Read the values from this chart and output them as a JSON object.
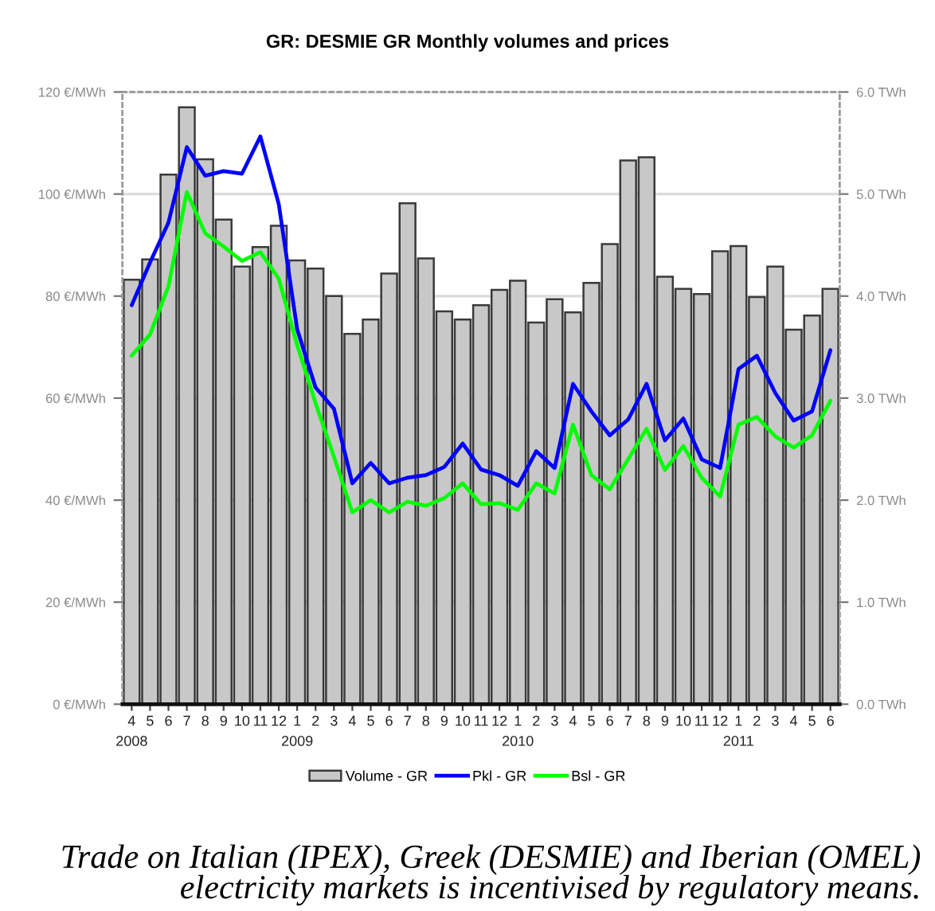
{
  "chart_data": {
    "type": "bar",
    "title": "GR: DESMIE GR Monthly volumes and prices",
    "categories": [
      "4\n2008",
      "5",
      "6",
      "7",
      "8",
      "9",
      "10",
      "11",
      "12",
      "1\n2009",
      "2",
      "3",
      "4",
      "5",
      "6",
      "7",
      "8",
      "9",
      "10",
      "11",
      "12",
      "1\n2010",
      "2",
      "3",
      "4",
      "5",
      "6",
      "7",
      "8",
      "9",
      "10",
      "11",
      "12",
      "1\n2011",
      "2",
      "3",
      "4",
      "5",
      "6"
    ],
    "series": [
      {
        "name": "Volume - GR",
        "axis": "y2",
        "color": "#c8c8c8",
        "values": [
          4.16,
          4.36,
          5.19,
          5.85,
          5.34,
          4.75,
          4.29,
          4.48,
          4.69,
          4.35,
          4.27,
          4.0,
          3.63,
          3.77,
          4.22,
          4.91,
          4.37,
          3.85,
          3.77,
          3.91,
          4.06,
          4.15,
          3.74,
          3.97,
          3.84,
          4.13,
          4.51,
          5.33,
          5.36,
          4.19,
          4.07,
          4.02,
          4.44,
          4.49,
          3.99,
          4.29,
          3.67,
          3.81,
          4.07
        ]
      },
      {
        "name": "Pkl - GR",
        "type": "line",
        "axis": "y",
        "color": "#0000ff",
        "values": [
          78.2,
          86.6,
          94.4,
          109.2,
          103.6,
          104.5,
          104.0,
          111.3,
          98.0,
          73.5,
          62.1,
          57.9,
          43.3,
          47.3,
          43.3,
          44.4,
          44.9,
          46.5,
          51.1,
          46.0,
          44.9,
          42.8,
          49.6,
          46.3,
          62.8,
          57.4,
          52.7,
          55.8,
          62.8,
          51.7,
          56.0,
          48.0,
          46.3,
          65.7,
          68.3,
          61.0,
          55.6,
          57.4,
          69.4
        ]
      },
      {
        "name": "Bsl - GR",
        "type": "line",
        "axis": "y",
        "color": "#00ff00",
        "values": [
          68.3,
          72.5,
          81.9,
          100.4,
          92.3,
          89.7,
          86.9,
          88.6,
          83.4,
          70.4,
          59.0,
          48.5,
          37.6,
          40.0,
          37.6,
          39.7,
          38.9,
          40.4,
          43.3,
          39.2,
          39.4,
          38.1,
          43.3,
          41.3,
          54.8,
          44.9,
          42.1,
          48.0,
          54.0,
          45.9,
          50.6,
          44.4,
          40.7,
          54.8,
          56.3,
          52.5,
          50.3,
          52.7,
          59.5
        ]
      }
    ],
    "ylim": [
      0,
      120
    ],
    "yticks": [
      {
        "value": 0,
        "label": "0 €/MWh"
      },
      {
        "value": 20,
        "label": "20 €/MWh"
      },
      {
        "value": 40,
        "label": "40 €/MWh"
      },
      {
        "value": 60,
        "label": "60 €/MWh"
      },
      {
        "value": 80,
        "label": "80 €/MWh"
      },
      {
        "value": 100,
        "label": "100 €/MWh"
      },
      {
        "value": 120,
        "label": "120 €/MWh"
      }
    ],
    "y2lim": [
      0,
      6
    ],
    "y2ticks": [
      {
        "value": 0,
        "label": "0.0 TWh"
      },
      {
        "value": 1,
        "label": "1.0 TWh"
      },
      {
        "value": 2,
        "label": "2.0 TWh"
      },
      {
        "value": 3,
        "label": "3.0 TWh"
      },
      {
        "value": 4,
        "label": "4.0 TWh"
      },
      {
        "value": 5,
        "label": "5.0 TWh"
      },
      {
        "value": 6,
        "label": "6.0 TWh"
      }
    ],
    "grid": "y",
    "legend": "bottom",
    "annotations": [
      "Trade on Italian (IPEX), Greek (DESMIE) and Iberian (OMEL) electricity markets is incentivised by regulatory means."
    ]
  }
}
